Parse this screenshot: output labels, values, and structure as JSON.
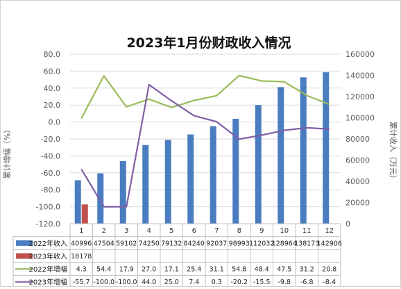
{
  "chart_data": {
    "type": "bar",
    "title": "2023年1月份财政收入情况",
    "categories": [
      "1",
      "2",
      "3",
      "4",
      "5",
      "6",
      "7",
      "8",
      "9",
      "10",
      "11",
      "12"
    ],
    "y_left": {
      "label": "累计增幅（%）",
      "range": [
        -120,
        80
      ],
      "ticks": [
        "80.0",
        "60.0",
        "40.0",
        "20.0",
        "0.0",
        "-20.0",
        "-40.0",
        "-60.0",
        "-80.0",
        "-100.0",
        "-120.0"
      ]
    },
    "y_right": {
      "label": "累计收入（万元）",
      "range": [
        0,
        160000
      ],
      "ticks": [
        "160000",
        "140000",
        "120000",
        "100000",
        "80000",
        "60000",
        "40000",
        "20000",
        "0"
      ]
    },
    "series": [
      {
        "name": "2022年收入",
        "type": "bar",
        "axis": "right",
        "color": "#4a7dc0",
        "values": [
          40996,
          47504,
          59102,
          74250,
          79132,
          84240,
          92037,
          98993,
          112032,
          128964,
          138173,
          142906
        ],
        "labels": [
          "40996",
          "47504",
          "59102",
          "74250",
          "79132",
          "84240",
          "92037",
          "98993",
          "112032",
          "128964",
          "138173",
          "142906"
        ]
      },
      {
        "name": "2023年收入",
        "type": "bar",
        "axis": "right",
        "color": "#c0504d",
        "values": [
          18178,
          null,
          null,
          null,
          null,
          null,
          null,
          null,
          null,
          null,
          null,
          null
        ],
        "labels": [
          "18178",
          "",
          "",
          "",
          "",
          "",
          "",
          "",
          "",
          "",
          "",
          ""
        ]
      },
      {
        "name": "2022年增幅",
        "type": "line",
        "axis": "left",
        "color": "#9bbb59",
        "values": [
          4.3,
          54.4,
          17.9,
          27.0,
          17.1,
          25.4,
          31.1,
          54.8,
          48.4,
          47.5,
          31.2,
          20.8
        ],
        "labels": [
          "4.3",
          "54.4",
          "17.9",
          "27.0",
          "17.1",
          "25.4",
          "31.1",
          "54.8",
          "48.4",
          "47.5",
          "31.2",
          "20.8"
        ]
      },
      {
        "name": "2023年增幅",
        "type": "line",
        "axis": "left",
        "color": "#7f5fa6",
        "values": [
          -55.7,
          -100.0,
          -100.0,
          44.0,
          25.0,
          7.4,
          0.3,
          -20.2,
          -15.5,
          -9.8,
          -6.8,
          -8.4
        ],
        "labels": [
          "-55.7",
          "-100.0",
          "-100.0",
          "44.0",
          "25.0",
          "7.4",
          "0.3",
          "-20.2",
          "-15.5",
          "-9.8",
          "-6.8",
          "-8.4"
        ]
      }
    ]
  }
}
